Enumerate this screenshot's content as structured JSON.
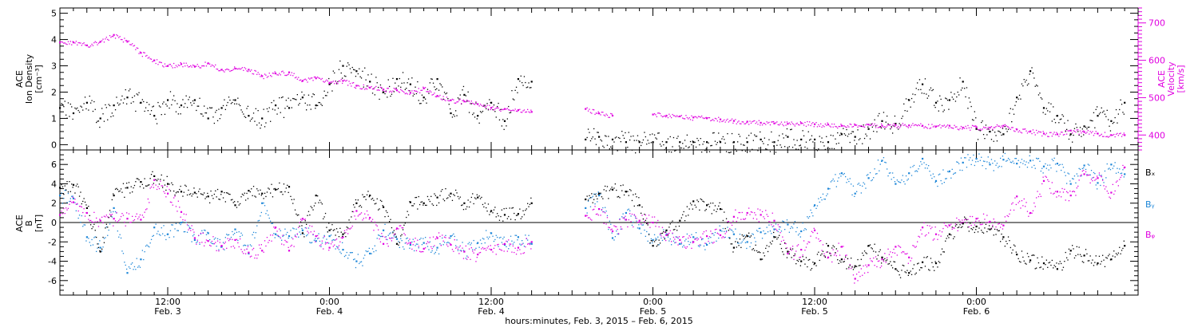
{
  "colors": {
    "black": "#000000",
    "magenta": "#e000e0",
    "blue": "#1c86d8",
    "axis": "#000000"
  },
  "chart_data": [
    {
      "type": "scatter",
      "panel": "top",
      "ylabel_lines": [
        "ACE",
        "Ion Density",
        "[cm⁻³]"
      ],
      "ylim": [
        -0.2,
        5.2
      ],
      "yticks": [
        0,
        1,
        2,
        3,
        4,
        5
      ],
      "y2label_lines": [
        "ACE",
        "Velocity",
        "[km/s]"
      ],
      "y2lim": [
        360,
        740
      ],
      "y2ticks": [
        400,
        500,
        600,
        700
      ],
      "xlim": [
        4.0,
        84.0
      ],
      "x_unit": "hours since Feb. 3, 2015 00:00",
      "series": [
        {
          "axis": "left",
          "color": "#000000",
          "x": [
            4,
            5,
            6,
            7,
            8,
            9,
            10,
            11,
            12,
            13,
            14,
            15,
            16,
            17,
            18,
            19,
            20,
            21,
            22,
            23,
            24,
            25,
            26,
            27,
            28,
            29,
            30,
            31,
            32,
            33,
            34,
            35,
            36,
            37,
            38,
            39,
            40,
            41,
            42,
            43,
            44,
            45,
            46,
            47,
            48,
            49,
            50,
            51,
            52,
            53,
            54,
            55,
            56,
            57,
            58,
            59,
            60,
            61,
            62,
            63,
            64,
            65,
            66,
            67,
            68,
            69,
            70,
            71,
            72,
            73,
            74,
            75,
            76,
            77,
            78,
            79,
            80,
            81,
            82,
            83
          ],
          "values": [
            1.4,
            1.2,
            1.6,
            1.0,
            1.5,
            1.8,
            1.6,
            1.1,
            1.7,
            1.5,
            1.7,
            1.0,
            1.4,
            1.7,
            1.1,
            1.0,
            1.5,
            1.4,
            1.8,
            1.5,
            2.3,
            3.0,
            2.8,
            2.4,
            2.0,
            2.5,
            2.3,
            1.8,
            2.5,
            1.2,
            1.9,
            1.1,
            1.6,
            0.9,
            2.5,
            2.4,
            null,
            null,
            null,
            0.2,
            0.3,
            0.2,
            0.1,
            0.1,
            0.1,
            0.1,
            0.1,
            0.1,
            0.1,
            0.1,
            0.1,
            0.1,
            0.2,
            0.1,
            0.3,
            0.2,
            0.2,
            0.1,
            0.4,
            0.3,
            0.6,
            0.9,
            0.8,
            1.7,
            2.3,
            1.6,
            1.7,
            2.4,
            0.6,
            0.5,
            0.4,
            1.8,
            2.8,
            1.4,
            1.1,
            0.4,
            0.7,
            1.1,
            0.9,
            1.6
          ]
        },
        {
          "axis": "right",
          "color": "#e000e0",
          "x": [
            4,
            5,
            6,
            7,
            8,
            9,
            10,
            11,
            12,
            13,
            14,
            15,
            16,
            17,
            18,
            19,
            20,
            21,
            22,
            23,
            24,
            25,
            26,
            27,
            28,
            29,
            30,
            31,
            32,
            33,
            34,
            35,
            36,
            37,
            38,
            39,
            40,
            41,
            42,
            43,
            44,
            45,
            46,
            47,
            48,
            49,
            50,
            51,
            52,
            53,
            54,
            55,
            56,
            57,
            58,
            59,
            60,
            61,
            62,
            63,
            64,
            65,
            66,
            67,
            68,
            69,
            70,
            71,
            72,
            73,
            74,
            75,
            76,
            77,
            78,
            79,
            80,
            81,
            82,
            83
          ],
          "values": [
            648,
            648,
            640,
            650,
            668,
            650,
            620,
            600,
            585,
            590,
            583,
            592,
            575,
            578,
            575,
            558,
            565,
            568,
            545,
            552,
            540,
            545,
            532,
            527,
            522,
            520,
            513,
            525,
            505,
            493,
            490,
            483,
            473,
            470,
            467,
            462,
            null,
            null,
            null,
            470,
            458,
            452,
            null,
            null,
            455,
            452,
            450,
            447,
            445,
            442,
            438,
            436,
            433,
            431,
            430,
            432,
            429,
            428,
            425,
            427,
            428,
            425,
            427,
            426,
            425,
            423,
            425,
            420,
            421,
            420,
            425,
            415,
            410,
            404,
            402,
            412,
            408,
            404,
            400,
            400
          ]
        }
      ]
    },
    {
      "type": "scatter",
      "panel": "bottom",
      "ylabel_lines": [
        "ACE",
        "B",
        "[nT]"
      ],
      "ylim": [
        -7.5,
        7.5
      ],
      "yticks": [
        -6,
        -4,
        -2,
        0,
        2,
        4,
        6
      ],
      "xlim": [
        4.0,
        84.0
      ],
      "x_unit": "hours since Feb. 3, 2015 00:00",
      "series": [
        {
          "name": "Bₓ",
          "color": "#000000",
          "x": [
            4,
            5,
            6,
            7,
            8,
            9,
            10,
            11,
            12,
            13,
            14,
            15,
            16,
            17,
            18,
            19,
            20,
            21,
            22,
            23,
            24,
            25,
            26,
            27,
            28,
            29,
            30,
            31,
            32,
            33,
            34,
            35,
            36,
            37,
            38,
            39,
            40,
            41,
            42,
            43,
            44,
            45,
            46,
            47,
            48,
            49,
            50,
            51,
            52,
            53,
            54,
            55,
            56,
            57,
            58,
            59,
            60,
            61,
            62,
            63,
            64,
            65,
            66,
            67,
            68,
            69,
            70,
            71,
            72,
            73,
            74,
            75,
            76,
            77,
            78,
            79,
            80,
            81,
            82,
            83
          ],
          "values": [
            3.6,
            3.9,
            1.5,
            -3.0,
            2.8,
            3.6,
            4.2,
            4.8,
            4.0,
            3.2,
            3.1,
            2.7,
            3.2,
            1.8,
            3.3,
            3.0,
            3.4,
            3.7,
            -1.1,
            2.8,
            -0.8,
            -1.2,
            2.0,
            2.8,
            1.6,
            -2.2,
            2.1,
            2.0,
            2.6,
            3.0,
            2.0,
            2.6,
            1.2,
            0.8,
            0.9,
            2.0,
            null,
            null,
            null,
            2.4,
            3.0,
            3.4,
            3.2,
            1.8,
            -2.4,
            -0.8,
            0.2,
            2.2,
            1.8,
            1.4,
            -2.6,
            -1.4,
            -3.8,
            -1.5,
            -3.0,
            -4.0,
            -4.2,
            -2.4,
            -3.8,
            -4.5,
            -2.4,
            -3.6,
            -4.8,
            -5.2,
            -4.1,
            -4.2,
            -1.2,
            -0.1,
            -0.4,
            -0.7,
            -1.5,
            -3.3,
            -3.9,
            -4.2,
            -4.8,
            -2.9,
            -3.4,
            -4.2,
            -3.8,
            -2.4
          ]
        },
        {
          "name": "Bᵧ",
          "color": "#1c86d8",
          "x": [
            4,
            5,
            6,
            7,
            8,
            9,
            10,
            11,
            12,
            13,
            14,
            15,
            16,
            17,
            18,
            19,
            20,
            21,
            22,
            23,
            24,
            25,
            26,
            27,
            28,
            29,
            30,
            31,
            32,
            33,
            34,
            35,
            36,
            37,
            38,
            39,
            40,
            41,
            42,
            43,
            44,
            45,
            46,
            47,
            48,
            49,
            50,
            51,
            52,
            53,
            54,
            55,
            56,
            57,
            58,
            59,
            60,
            61,
            62,
            63,
            64,
            65,
            66,
            67,
            68,
            69,
            70,
            71,
            72,
            73,
            74,
            75,
            76,
            77,
            78,
            79,
            80,
            81,
            82,
            83
          ],
          "values": [
            2.8,
            2.5,
            -1.5,
            -2.6,
            1.5,
            -5.2,
            -3.8,
            -0.5,
            -1.2,
            0.0,
            -1.8,
            -1.1,
            -2.5,
            -0.7,
            -3.2,
            2.0,
            -1.2,
            -1.4,
            -0.8,
            -1.9,
            -1.4,
            -2.8,
            -4.0,
            -3.2,
            -0.8,
            -1.7,
            -2.3,
            -2.1,
            -2.6,
            -1.4,
            -3.0,
            -2.1,
            -1.1,
            -2.3,
            -1.5,
            -2.2,
            null,
            null,
            null,
            1.5,
            2.8,
            -1.6,
            1.0,
            -0.6,
            -1.8,
            -1.2,
            -2.2,
            -1.5,
            -2.3,
            -0.8,
            -1.2,
            -2.0,
            -1.0,
            -0.7,
            -0.2,
            -0.9,
            1.8,
            3.5,
            5.1,
            3.0,
            4.6,
            6.4,
            4.0,
            5.1,
            6.6,
            4.3,
            5.3,
            6.2,
            6.6,
            6.0,
            6.5,
            6.1,
            6.4,
            5.8,
            6.1,
            4.0,
            5.9,
            4.1,
            6.0,
            5.0
          ]
        },
        {
          "name": "Bᵩ",
          "color": "#e000e0",
          "x": [
            4,
            5,
            6,
            7,
            8,
            9,
            10,
            11,
            12,
            13,
            14,
            15,
            16,
            17,
            18,
            19,
            20,
            21,
            22,
            23,
            24,
            25,
            26,
            27,
            28,
            29,
            30,
            31,
            32,
            33,
            34,
            35,
            36,
            37,
            38,
            39,
            40,
            41,
            42,
            43,
            44,
            45,
            46,
            47,
            48,
            49,
            50,
            51,
            52,
            53,
            54,
            55,
            56,
            57,
            58,
            59,
            60,
            61,
            62,
            63,
            64,
            65,
            66,
            67,
            68,
            69,
            70,
            71,
            72,
            73,
            74,
            75,
            76,
            77,
            78,
            79,
            80,
            81,
            82,
            83
          ],
          "values": [
            0.8,
            2.1,
            1.0,
            0.2,
            0.4,
            0.4,
            0.3,
            4.4,
            3.0,
            1.1,
            -1.6,
            -1.9,
            -2.4,
            -1.8,
            -3.1,
            -2.9,
            -0.5,
            -2.9,
            0.4,
            -1.4,
            -2.6,
            -1.5,
            1.2,
            0.5,
            -2.2,
            -0.6,
            -2.1,
            -2.7,
            -1.6,
            -2.3,
            -3.0,
            -3.3,
            -2.8,
            -2.2,
            -2.6,
            -2.0,
            null,
            null,
            null,
            0.7,
            1.4,
            -0.9,
            0.3,
            0.2,
            0.0,
            -1.3,
            -1.8,
            -2.0,
            -1.4,
            -1.3,
            0.6,
            1.0,
            0.8,
            0.2,
            -3.2,
            -2.8,
            -0.8,
            -3.6,
            -2.5,
            -5.8,
            -4.4,
            -3.8,
            -2.5,
            -3.6,
            -0.5,
            -1.2,
            -0.3,
            0.0,
            0.4,
            0.1,
            -0.3,
            2.7,
            1.0,
            4.3,
            3.2,
            2.8,
            5.0,
            4.6,
            3.1,
            5.7
          ]
        }
      ],
      "legend": [
        "Bₓ",
        "Bᵧ",
        "Bᵩ"
      ],
      "legend_position": "right"
    }
  ],
  "xaxis": {
    "xlabel": "hours:minutes, Feb.  3, 2015 – Feb.  6, 2015",
    "ticks": [
      {
        "x": 12,
        "time": "12:00",
        "date": "Feb. 3"
      },
      {
        "x": 24,
        "time": "0:00",
        "date": "Feb. 4"
      },
      {
        "x": 36,
        "time": "12:00",
        "date": "Feb. 4"
      },
      {
        "x": 48,
        "time": "0:00",
        "date": "Feb. 5"
      },
      {
        "x": 60,
        "time": "12:00",
        "date": "Feb. 5"
      },
      {
        "x": 72,
        "time": "0:00",
        "date": "Feb. 6"
      }
    ]
  }
}
